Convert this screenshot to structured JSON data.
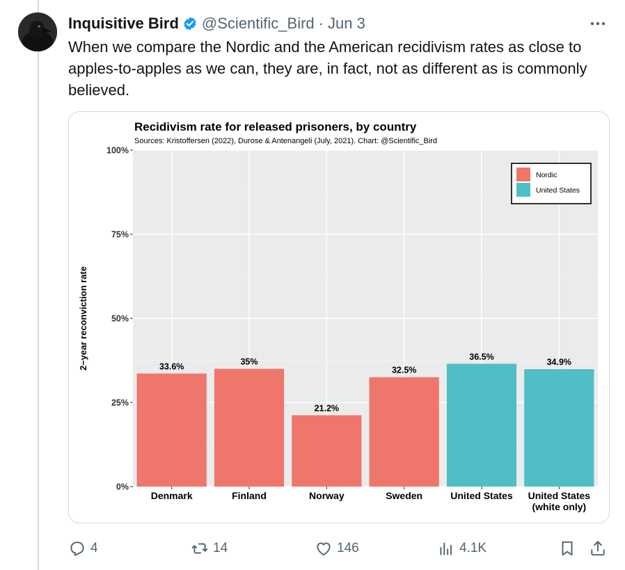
{
  "tweet": {
    "display_name": "Inquisitive Bird",
    "handle": "@Scientific_Bird",
    "separator": "·",
    "date": "Jun 3",
    "text": "When we compare the Nordic and the American recidivism rates as close to apples-to-apples as we can, they are, in fact, not as different as is commonly believed."
  },
  "actions": {
    "replies": "4",
    "reposts": "14",
    "likes": "146",
    "views": "4.1K"
  },
  "icons": {
    "avatar": "raven-avatar",
    "verified": "verified-badge-icon",
    "more": "more-icon",
    "reply": "reply-icon",
    "repost": "repost-icon",
    "like": "heart-icon",
    "views": "views-icon",
    "bookmark": "bookmark-icon",
    "share": "share-icon"
  },
  "colors": {
    "nordic": "#ee766b",
    "united_states": "#4fbec6",
    "verified": "#1d9bf0",
    "panel": "#ebebeb"
  },
  "chart_data": {
    "type": "bar",
    "title": "Recidivism rate for released prisoners, by country",
    "subtitle": "Sources: Kristoffersen (2022), Durose & Antenangeli (July, 2021). Chart: @Scientific_Bird",
    "xlabel": "",
    "ylabel": "2−year reconviction rate",
    "ylim": [
      0,
      100
    ],
    "yticks": [
      0,
      25,
      50,
      75,
      100
    ],
    "ytick_labels": [
      "0%",
      "25%",
      "50%",
      "75%",
      "100%"
    ],
    "categories": [
      "Denmark",
      "Finland",
      "Norway",
      "Sweden",
      "United States",
      "United States\n(white only)"
    ],
    "values": [
      33.6,
      35,
      21.2,
      32.5,
      36.5,
      34.9
    ],
    "value_labels": [
      "33.6%",
      "35%",
      "21.2%",
      "32.5%",
      "36.5%",
      "34.9%"
    ],
    "groups": [
      "Nordic",
      "Nordic",
      "Nordic",
      "Nordic",
      "United States",
      "United States"
    ],
    "legend": {
      "position": "top-right",
      "entries": [
        {
          "name": "Nordic",
          "color": "#ee766b"
        },
        {
          "name": "United States",
          "color": "#4fbec6"
        }
      ]
    },
    "grid": true
  }
}
